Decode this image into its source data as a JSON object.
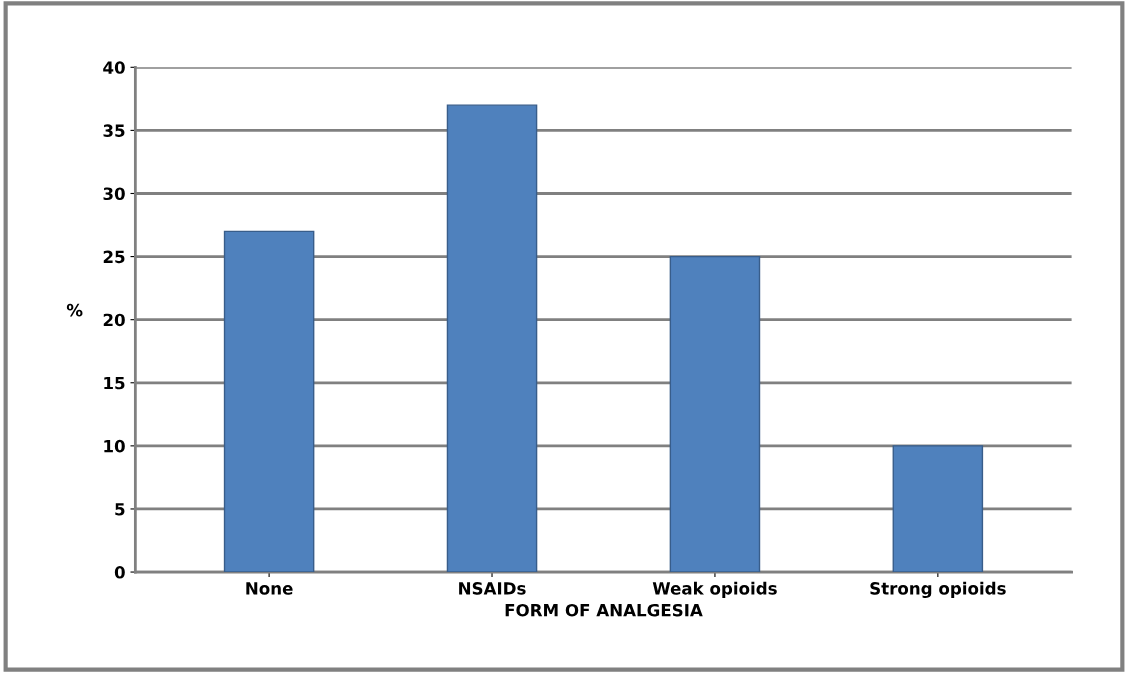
{
  "chart_data": {
    "type": "bar",
    "xlabel": "FORM OF ANALGESIA",
    "ylabel": "%",
    "categories": [
      "None",
      "NSAIDs",
      "Weak opioids",
      "Strong opioids"
    ],
    "values": [
      27,
      37,
      25,
      10
    ],
    "color": "#4f81bd",
    "ylim": [
      0,
      40
    ],
    "yticks": [
      0,
      5,
      10,
      15,
      20,
      25,
      30,
      35,
      40
    ],
    "grid": "y",
    "legend": false
  }
}
